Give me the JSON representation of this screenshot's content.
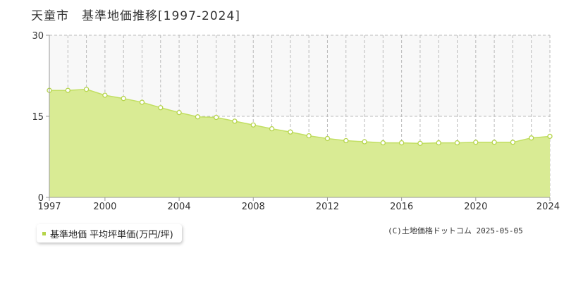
{
  "header": {
    "title": "天童市　基準地価推移[1997-2024]"
  },
  "legend": {
    "label": "基準地価 平均坪単価(万円/坪)"
  },
  "credit": "(C)土地価格ドットコム 2025-05-05",
  "colors": {
    "fill": "#d9eb94",
    "line": "#c2df63",
    "marker_stroke": "#b5d44a",
    "marker_fill": "#ffffff",
    "legend_swatch": "#b5d44a",
    "grid": "#bbbbbb",
    "band": "#f8f8f8",
    "axis": "#999999"
  },
  "chart_data": {
    "type": "area",
    "title": "天童市　基準地価推移[1997-2024]",
    "xlabel": "",
    "ylabel": "",
    "xlim": [
      1997,
      2024
    ],
    "ylim": [
      0,
      30
    ],
    "y_ticks": [
      0,
      15,
      30
    ],
    "x_tick_labels": [
      "1997",
      "2000",
      "2004",
      "2008",
      "2012",
      "2016",
      "2020",
      "2024"
    ],
    "grid": true,
    "legend_position": "bottom-left",
    "series": [
      {
        "name": "基準地価 平均坪単価(万円/坪)",
        "x": [
          1997,
          1998,
          1999,
          2000,
          2001,
          2002,
          2003,
          2004,
          2005,
          2006,
          2007,
          2008,
          2009,
          2010,
          2011,
          2012,
          2013,
          2014,
          2015,
          2016,
          2017,
          2018,
          2019,
          2020,
          2021,
          2022,
          2023,
          2024
        ],
        "values": [
          19.8,
          19.8,
          20.0,
          18.9,
          18.3,
          17.6,
          16.6,
          15.7,
          14.9,
          14.8,
          14.1,
          13.4,
          12.7,
          12.1,
          11.4,
          10.9,
          10.5,
          10.3,
          10.1,
          10.1,
          10.0,
          10.1,
          10.1,
          10.2,
          10.2,
          10.2,
          11.0,
          11.3
        ]
      }
    ]
  }
}
